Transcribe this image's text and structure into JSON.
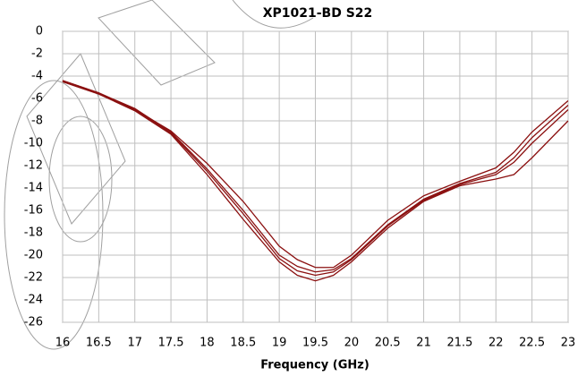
{
  "chart_data": {
    "type": "line",
    "title": "XP1021-BD S22",
    "x_label": "Frequency (GHz)",
    "x": [
      16,
      16.5,
      17,
      17.5,
      18,
      18.5,
      19,
      19.25,
      19.5,
      19.75,
      20,
      20.5,
      21,
      21.5,
      22,
      22.25,
      22.5,
      23
    ],
    "series": [
      {
        "color": "#8b1010",
        "values": [
          -4.4,
          -5.5,
          -6.9,
          -9.0,
          -12.3,
          -16.0,
          -20.0,
          -21.0,
          -21.5,
          -21.3,
          -20.3,
          -17.3,
          -15.0,
          -13.6,
          -12.6,
          -11.3,
          -9.5,
          -6.6
        ]
      },
      {
        "color": "#8b1010",
        "values": [
          -4.5,
          -5.6,
          -7.1,
          -9.2,
          -12.8,
          -16.8,
          -20.6,
          -21.8,
          -22.3,
          -21.8,
          -20.6,
          -17.6,
          -15.2,
          -13.8,
          -13.2,
          -12.8,
          -11.3,
          -8.0
        ]
      },
      {
        "color": "#8b1010",
        "values": [
          -4.4,
          -5.5,
          -7.0,
          -8.9,
          -11.8,
          -15.2,
          -19.2,
          -20.4,
          -21.1,
          -21.1,
          -20.0,
          -16.9,
          -14.7,
          -13.4,
          -12.2,
          -10.8,
          -9.0,
          -6.2
        ]
      },
      {
        "color": "#8b1010",
        "values": [
          -4.5,
          -5.6,
          -7.0,
          -9.1,
          -12.5,
          -16.3,
          -20.3,
          -21.4,
          -21.8,
          -21.5,
          -20.4,
          -17.4,
          -15.1,
          -13.7,
          -12.8,
          -11.7,
          -10.0,
          -7.0
        ]
      }
    ],
    "xlim": [
      16,
      23
    ],
    "xticks": [
      16,
      16.5,
      17,
      17.5,
      18,
      18.5,
      19,
      19.5,
      20,
      20.5,
      21,
      21.5,
      22,
      22.5,
      23
    ],
    "ylim": [
      -26,
      0
    ],
    "yticks": [
      0,
      -2,
      -4,
      -6,
      -8,
      -10,
      -12,
      -14,
      -16,
      -18,
      -20,
      -22,
      -24,
      -26
    ],
    "grid": true
  }
}
